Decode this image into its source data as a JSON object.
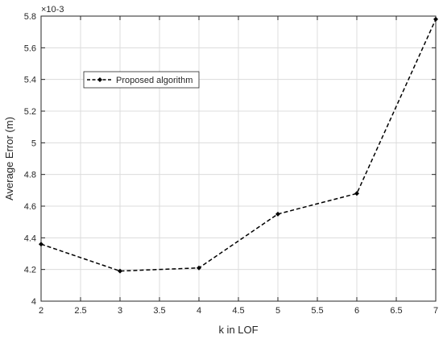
{
  "chart_data": {
    "type": "line",
    "xlabel": "k in LOF",
    "ylabel": "Average Error (m)",
    "y_exponent_label": "×10-3",
    "xlim": [
      2,
      7
    ],
    "ylim": [
      4,
      5.8
    ],
    "grid": true,
    "legend_position": "upper-left",
    "x_ticks": [
      "2",
      "2.5",
      "3",
      "3.5",
      "4",
      "4.5",
      "5",
      "5.5",
      "6",
      "6.5",
      "7"
    ],
    "y_ticks": [
      "4",
      "4.2",
      "4.4",
      "4.6",
      "4.8",
      "5",
      "5.2",
      "5.4",
      "5.6",
      "5.8"
    ],
    "series": [
      {
        "name": "Proposed algorithm",
        "line_style": "dashed",
        "marker": "diamond",
        "color": "#000000",
        "x": [
          2,
          3,
          4,
          5,
          6,
          7
        ],
        "y": [
          4.36,
          4.19,
          4.21,
          4.55,
          4.68,
          5.78
        ]
      }
    ]
  }
}
